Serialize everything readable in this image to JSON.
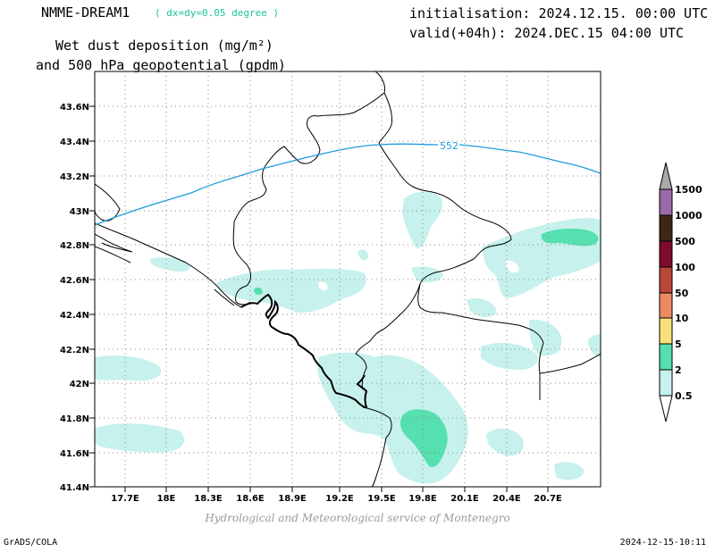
{
  "header": {
    "model_name": "NMME-DREAM1",
    "resolution": "( dx=dy=0.05 degree )",
    "initialisation": "initialisation: 2024.12.15. 00:00 UTC",
    "valid": "valid(+04h): 2024.DEC.15 04:00 UTC",
    "field_line1": "Wet dust deposition (mg/m²)",
    "field_line2": "and 500 hPa geopotential (gpdm)"
  },
  "map": {
    "lat_labels": [
      "43.6N",
      "43.4N",
      "43.2N",
      "43N",
      "42.8N",
      "42.6N",
      "42.4N",
      "42.2N",
      "42N",
      "41.8N",
      "41.6N",
      "41.4N"
    ],
    "lon_labels": [
      "17.7E",
      "18E",
      "18.3E",
      "18.6E",
      "18.9E",
      "19.2E",
      "19.5E",
      "19.8E",
      "20.1E",
      "20.4E",
      "20.7E"
    ],
    "contour_label": "552",
    "colors": {
      "light_dust": "#c6f1ec",
      "medium_dust": "#5ae0b3",
      "contour_line": "#1f9be0",
      "border": "#000000"
    }
  },
  "legend": {
    "labels": [
      "1500",
      "1000",
      "500",
      "100",
      "50",
      "10",
      "5",
      "2",
      "0.5"
    ],
    "colors": [
      "#a9a9a9",
      "#9a6aa6",
      "#3d2716",
      "#7e0c2a",
      "#b9473a",
      "#ec8a66",
      "#f7e07a",
      "#56dfaf",
      "#c6f1ec"
    ]
  },
  "footer": {
    "credit": "Hydrological and Meteorological service of Montenegro",
    "left": "GrADS/COLA",
    "right": "2024-12-15-10:11"
  }
}
